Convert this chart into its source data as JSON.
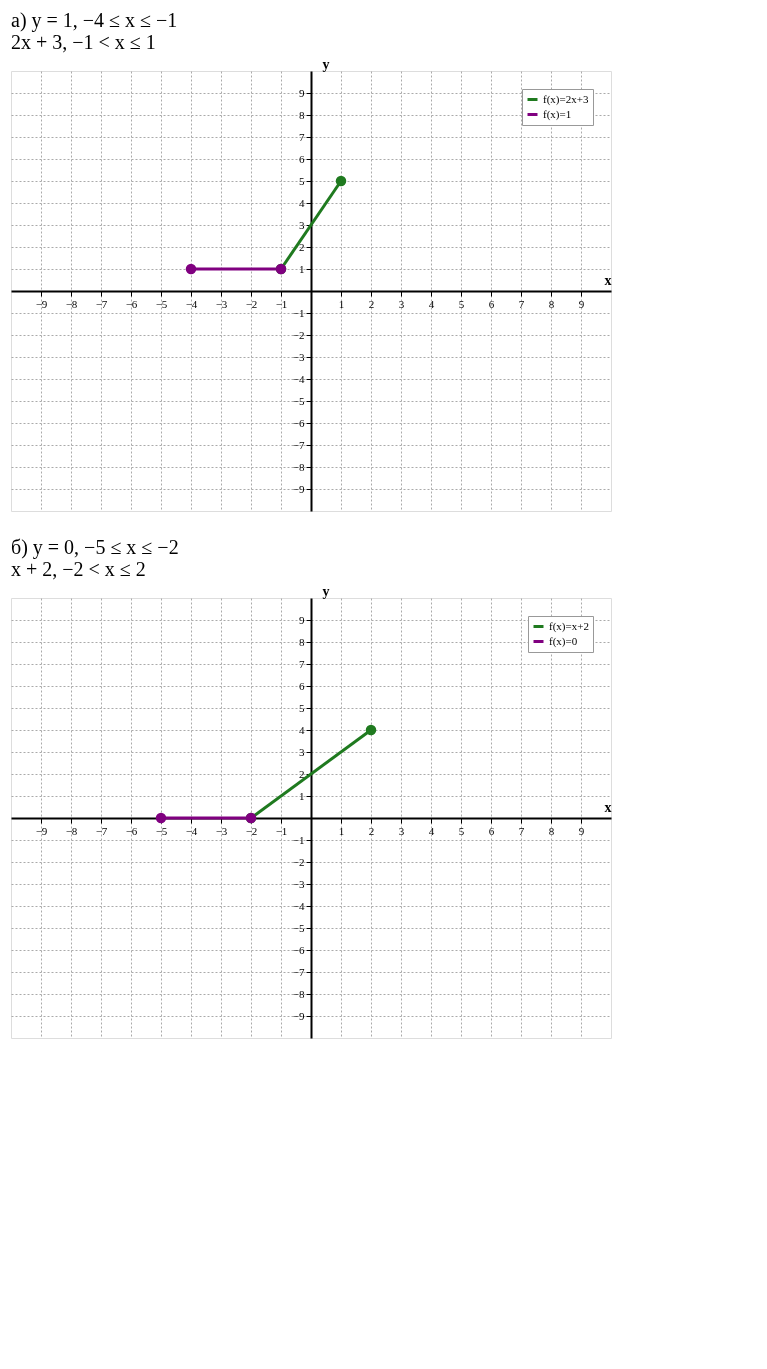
{
  "chart_data": [
    {
      "type": "line",
      "title": "а) y = 1,   −4 ≤ x ≤ −1",
      "subtitle": "2x + 3,   −1 < x ≤ 1",
      "xlabel": "x",
      "ylabel": "y",
      "series": [
        {
          "name": "f(x)=2x+3",
          "color": "#1f7a1f",
          "x": [
            -1,
            1
          ],
          "values": [
            1,
            5
          ]
        },
        {
          "name": "f(x)=1",
          "color": "#800080",
          "x": [
            -4,
            -1
          ],
          "values": [
            1,
            1
          ]
        }
      ],
      "xlim": [
        -10,
        10
      ],
      "ylim": [
        -10,
        10
      ],
      "xticks": [
        -9,
        -8,
        -7,
        -6,
        -5,
        -4,
        -3,
        -2,
        -1,
        1,
        2,
        3,
        4,
        5,
        6,
        7,
        8,
        9
      ],
      "yticks": [
        -9,
        -8,
        -7,
        -6,
        -5,
        -4,
        -3,
        -2,
        -1,
        1,
        2,
        3,
        4,
        5,
        6,
        7,
        8,
        9
      ],
      "grid": true,
      "legend": "top right",
      "marker": "circle",
      "line_style": "solid"
    },
    {
      "type": "line",
      "title": "б) y = 0,   −5 ≤ x ≤ −2",
      "subtitle": "x + 2,   −2 < x ≤ 2",
      "xlabel": "x",
      "ylabel": "y",
      "series": [
        {
          "name": "f(x)=x+2",
          "color": "#1f7a1f",
          "x": [
            -2,
            2
          ],
          "values": [
            0,
            4
          ]
        },
        {
          "name": "f(x)=0",
          "color": "#800080",
          "x": [
            -5,
            -2
          ],
          "values": [
            0,
            0
          ]
        }
      ],
      "xlim": [
        -10,
        10
      ],
      "ylim": [
        -10,
        10
      ],
      "xticks": [
        -9,
        -8,
        -7,
        -6,
        -5,
        -4,
        -3,
        -2,
        -1,
        1,
        2,
        3,
        4,
        5,
        6,
        7,
        8,
        9
      ],
      "yticks": [
        -9,
        -8,
        -7,
        -6,
        -5,
        -4,
        -3,
        -2,
        -1,
        1,
        2,
        3,
        4,
        5,
        6,
        7,
        8,
        9
      ],
      "grid": true,
      "legend": "top right",
      "marker": "circle",
      "line_style": "solid"
    }
  ]
}
